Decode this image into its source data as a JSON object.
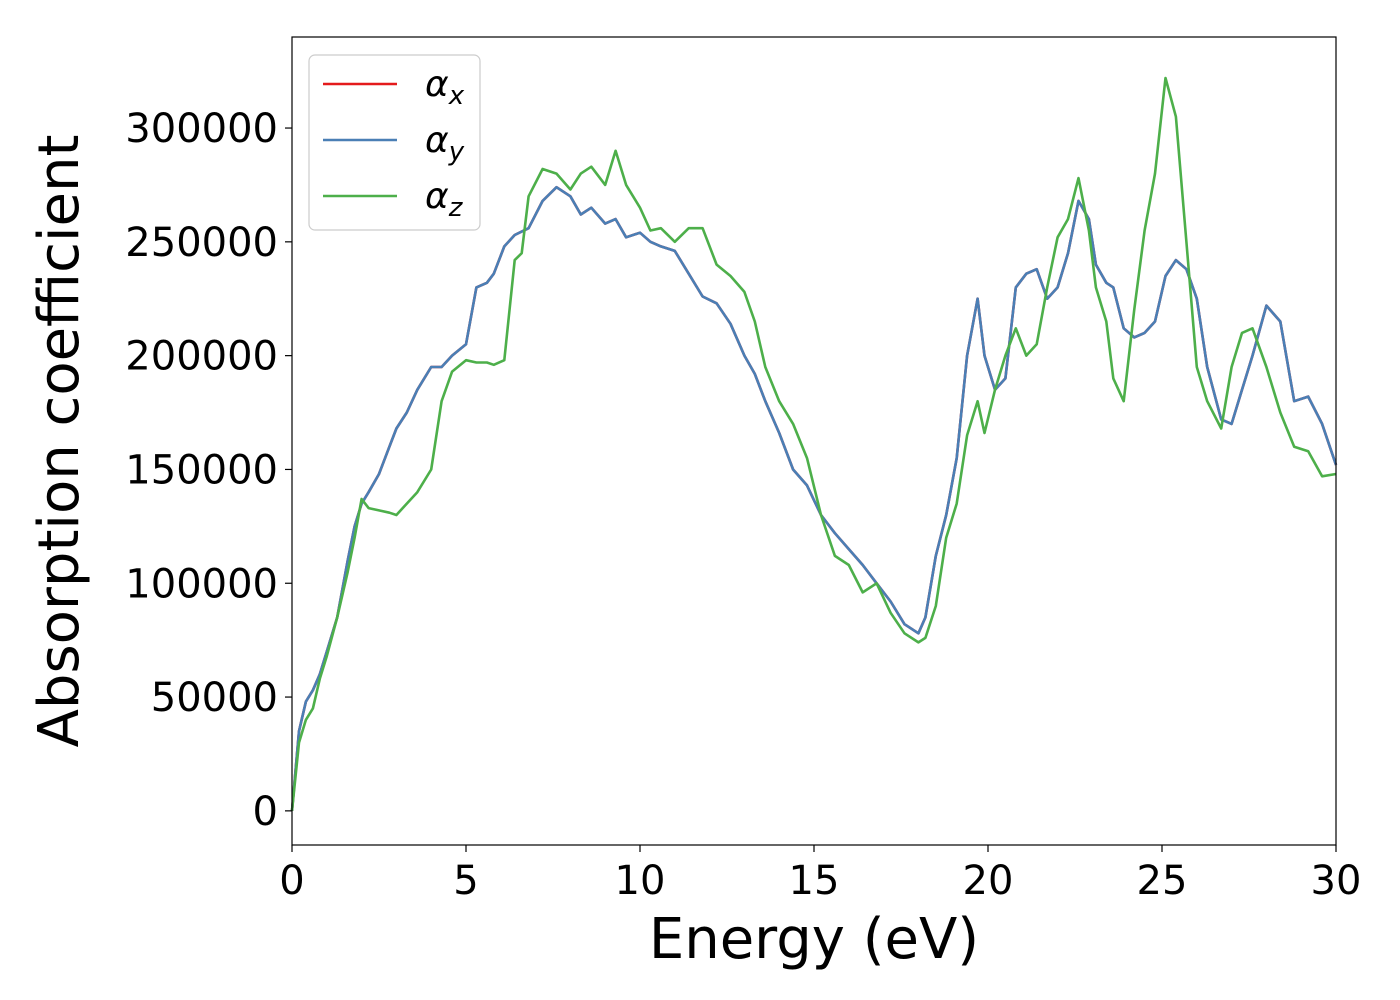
{
  "chart_data": {
    "type": "line",
    "title": "",
    "xlabel": "Energy (eV)",
    "ylabel": "Absorption coefficient",
    "xlim": [
      0,
      30
    ],
    "ylim": [
      -15000,
      340000
    ],
    "xticks": [
      0,
      5,
      10,
      15,
      20,
      25,
      30
    ],
    "yticks": [
      0,
      50000,
      100000,
      150000,
      200000,
      250000,
      300000
    ],
    "grid": false,
    "legend": "top-left",
    "series": [
      {
        "name": "x",
        "color": "#e41a1c",
        "x": [
          0,
          0.2,
          0.4,
          0.6,
          0.8,
          1.0,
          1.3,
          1.6,
          1.8,
          2.0,
          2.2,
          2.5,
          2.8,
          3.0,
          3.3,
          3.6,
          4.0,
          4.3,
          4.6,
          5.0,
          5.3,
          5.6,
          5.8,
          6.1,
          6.4,
          6.8,
          7.2,
          7.6,
          8.0,
          8.3,
          8.6,
          9.0,
          9.3,
          9.6,
          10.0,
          10.3,
          10.6,
          11.0,
          11.4,
          11.8,
          12.2,
          12.6,
          13.0,
          13.3,
          13.6,
          14.0,
          14.4,
          14.8,
          15.2,
          15.6,
          16.0,
          16.4,
          16.8,
          17.2,
          17.6,
          18.0,
          18.2,
          18.5,
          18.8,
          19.1,
          19.4,
          19.7,
          19.9,
          20.2,
          20.5,
          20.8,
          21.1,
          21.4,
          21.7,
          22.0,
          22.3,
          22.6,
          22.9,
          23.1,
          23.4,
          23.6,
          23.9,
          24.2,
          24.5,
          24.8,
          25.1,
          25.4,
          25.7,
          26.0,
          26.3,
          26.7,
          27.0,
          27.3,
          27.6,
          28.0,
          28.4,
          28.8,
          29.2,
          29.6,
          30.0
        ],
        "values": [
          0,
          35000,
          48000,
          53000,
          60000,
          70000,
          85000,
          110000,
          125000,
          135000,
          140000,
          148000,
          160000,
          168000,
          175000,
          185000,
          195000,
          195000,
          200000,
          205000,
          230000,
          232000,
          236000,
          248000,
          253000,
          256000,
          268000,
          274000,
          270000,
          262000,
          265000,
          258000,
          260000,
          252000,
          254000,
          250000,
          248000,
          246000,
          236000,
          226000,
          223000,
          214000,
          200000,
          192000,
          180000,
          166000,
          150000,
          143000,
          130000,
          122000,
          115000,
          108000,
          100000,
          92000,
          82000,
          78000,
          85000,
          112000,
          130000,
          155000,
          200000,
          225000,
          200000,
          185000,
          190000,
          230000,
          236000,
          238000,
          225000,
          230000,
          245000,
          268000,
          260000,
          240000,
          232000,
          230000,
          212000,
          208000,
          210000,
          215000,
          235000,
          242000,
          238000,
          225000,
          195000,
          172000,
          170000,
          185000,
          200000,
          222000,
          215000,
          180000,
          182000,
          170000,
          152000
        ]
      },
      {
        "name": "y",
        "color": "#4a7fb5",
        "x": [
          0,
          0.2,
          0.4,
          0.6,
          0.8,
          1.0,
          1.3,
          1.6,
          1.8,
          2.0,
          2.2,
          2.5,
          2.8,
          3.0,
          3.3,
          3.6,
          4.0,
          4.3,
          4.6,
          5.0,
          5.3,
          5.6,
          5.8,
          6.1,
          6.4,
          6.8,
          7.2,
          7.6,
          8.0,
          8.3,
          8.6,
          9.0,
          9.3,
          9.6,
          10.0,
          10.3,
          10.6,
          11.0,
          11.4,
          11.8,
          12.2,
          12.6,
          13.0,
          13.3,
          13.6,
          14.0,
          14.4,
          14.8,
          15.2,
          15.6,
          16.0,
          16.4,
          16.8,
          17.2,
          17.6,
          18.0,
          18.2,
          18.5,
          18.8,
          19.1,
          19.4,
          19.7,
          19.9,
          20.2,
          20.5,
          20.8,
          21.1,
          21.4,
          21.7,
          22.0,
          22.3,
          22.6,
          22.9,
          23.1,
          23.4,
          23.6,
          23.9,
          24.2,
          24.5,
          24.8,
          25.1,
          25.4,
          25.7,
          26.0,
          26.3,
          26.7,
          27.0,
          27.3,
          27.6,
          28.0,
          28.4,
          28.8,
          29.2,
          29.6,
          30.0
        ],
        "values": [
          0,
          35000,
          48000,
          53000,
          60000,
          70000,
          85000,
          110000,
          125000,
          135000,
          140000,
          148000,
          160000,
          168000,
          175000,
          185000,
          195000,
          195000,
          200000,
          205000,
          230000,
          232000,
          236000,
          248000,
          253000,
          256000,
          268000,
          274000,
          270000,
          262000,
          265000,
          258000,
          260000,
          252000,
          254000,
          250000,
          248000,
          246000,
          236000,
          226000,
          223000,
          214000,
          200000,
          192000,
          180000,
          166000,
          150000,
          143000,
          130000,
          122000,
          115000,
          108000,
          100000,
          92000,
          82000,
          78000,
          85000,
          112000,
          130000,
          155000,
          200000,
          225000,
          200000,
          185000,
          190000,
          230000,
          236000,
          238000,
          225000,
          230000,
          245000,
          268000,
          260000,
          240000,
          232000,
          230000,
          212000,
          208000,
          210000,
          215000,
          235000,
          242000,
          238000,
          225000,
          195000,
          172000,
          170000,
          185000,
          200000,
          222000,
          215000,
          180000,
          182000,
          170000,
          152000
        ]
      },
      {
        "name": "z",
        "color": "#4daf4a",
        "x": [
          0,
          0.2,
          0.4,
          0.6,
          0.8,
          1.0,
          1.3,
          1.6,
          1.8,
          2.0,
          2.2,
          2.5,
          2.8,
          3.0,
          3.3,
          3.6,
          4.0,
          4.3,
          4.6,
          5.0,
          5.3,
          5.6,
          5.8,
          6.1,
          6.4,
          6.6,
          6.8,
          7.2,
          7.6,
          8.0,
          8.3,
          8.6,
          9.0,
          9.3,
          9.6,
          10.0,
          10.3,
          10.6,
          11.0,
          11.4,
          11.8,
          12.2,
          12.6,
          13.0,
          13.3,
          13.6,
          14.0,
          14.4,
          14.8,
          15.2,
          15.6,
          16.0,
          16.4,
          16.8,
          17.2,
          17.6,
          18.0,
          18.2,
          18.5,
          18.8,
          19.1,
          19.4,
          19.7,
          19.9,
          20.2,
          20.5,
          20.8,
          21.1,
          21.4,
          21.7,
          22.0,
          22.3,
          22.6,
          22.9,
          23.1,
          23.4,
          23.6,
          23.9,
          24.2,
          24.5,
          24.8,
          25.1,
          25.4,
          25.7,
          26.0,
          26.3,
          26.7,
          27.0,
          27.3,
          27.6,
          28.0,
          28.4,
          28.8,
          29.2,
          29.6,
          30.0
        ],
        "values": [
          0,
          30000,
          40000,
          45000,
          58000,
          68000,
          85000,
          105000,
          120000,
          137000,
          133000,
          132000,
          131000,
          130000,
          135000,
          140000,
          150000,
          180000,
          193000,
          198000,
          197000,
          197000,
          196000,
          198000,
          242000,
          245000,
          270000,
          282000,
          280000,
          273000,
          280000,
          283000,
          275000,
          290000,
          275000,
          265000,
          255000,
          256000,
          250000,
          256000,
          256000,
          240000,
          235000,
          228000,
          215000,
          195000,
          180000,
          170000,
          155000,
          130000,
          112000,
          108000,
          96000,
          100000,
          87000,
          78000,
          74000,
          76000,
          90000,
          120000,
          135000,
          165000,
          180000,
          166000,
          185000,
          200000,
          212000,
          200000,
          205000,
          230000,
          252000,
          260000,
          278000,
          255000,
          230000,
          215000,
          190000,
          180000,
          220000,
          255000,
          280000,
          322000,
          305000,
          250000,
          195000,
          180000,
          168000,
          195000,
          210000,
          212000,
          195000,
          175000,
          160000,
          158000,
          147000,
          148000
        ]
      }
    ]
  }
}
